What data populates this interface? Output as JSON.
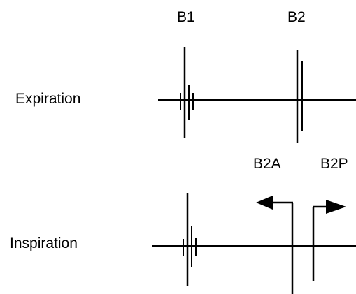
{
  "labels": {
    "b1": "B1",
    "b2": "B2",
    "expiration": "Expiration",
    "b2a": "B2A",
    "b2p": "B2P",
    "inspiration": "Inspiration"
  },
  "colors": {
    "ink": "#000000",
    "background": "#ffffff"
  }
}
